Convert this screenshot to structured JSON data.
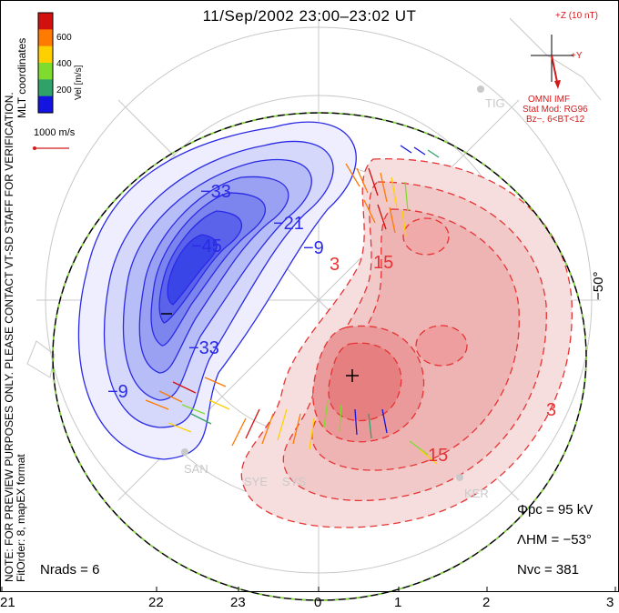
{
  "title": "11/Sep/2002 23:00–23:02 UT",
  "colorbar": {
    "ticks": [
      "600",
      "400",
      "200"
    ],
    "unit_label": "Vel [m/s]",
    "colors": [
      "#d11010",
      "#ff7a00",
      "#ffd000",
      "#7fdc2f",
      "#2fa26a",
      "#1414e0"
    ]
  },
  "coords_label": "MLT coordinates",
  "scale_label": "1000 m/s",
  "preview_note": "NOTE: FOR PREVIEW PURPOSES ONLY. PLEASE CONTACT VT-SD STAFF FOR VERIFICATION.",
  "fit_note": "FitOrder: 8,  mapEX format",
  "imf": {
    "z_label": "+Z (10 nT)",
    "y_label": "+Y",
    "source": "OMNI IMF",
    "model": "Stat Mod: RG96",
    "model_params": "Bz−, 6<BT<12"
  },
  "stats": {
    "phi_pc": "Φpc  =  95 kV",
    "lambda_hm": "ΛHM  =  −53°",
    "n_vc": "Nvc  =  381",
    "n_rads": "Nrads  =  6"
  },
  "lat_label": "−50°",
  "mlt_ticks": [
    "21",
    "22",
    "23",
    "0",
    "1",
    "2",
    "3"
  ],
  "sites": [
    "TIG",
    "SAN",
    "SYE",
    "SYS",
    "KER"
  ],
  "contour_labels": [
    "−33",
    "−45",
    "−21",
    "−9",
    "−33",
    "−9",
    "3",
    "15",
    "3",
    "15"
  ],
  "colors": {
    "dusk_cell": "#2a2ae6",
    "dawn_cell": "#e63333",
    "boundary": "#000000",
    "boundary_dash": "#7fdc2f",
    "accent_red": "#d41919"
  }
}
